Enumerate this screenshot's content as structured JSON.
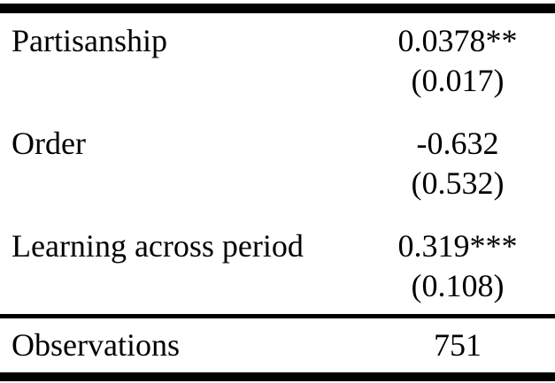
{
  "table": {
    "rows": [
      {
        "label": "Partisanship",
        "coef": "0.0378",
        "stars": "**",
        "se": "(0.017)"
      },
      {
        "label": "Order",
        "coef": "-0.632",
        "stars": "",
        "se": "(0.532)"
      },
      {
        "label": "Learning across period",
        "coef": "0.319",
        "stars": "***",
        "se": "(0.108)"
      }
    ],
    "footer": {
      "label": "Observations",
      "value": "751"
    }
  },
  "colors": {
    "text": "#000000",
    "background": "#ffffff",
    "rule": "#000000"
  }
}
